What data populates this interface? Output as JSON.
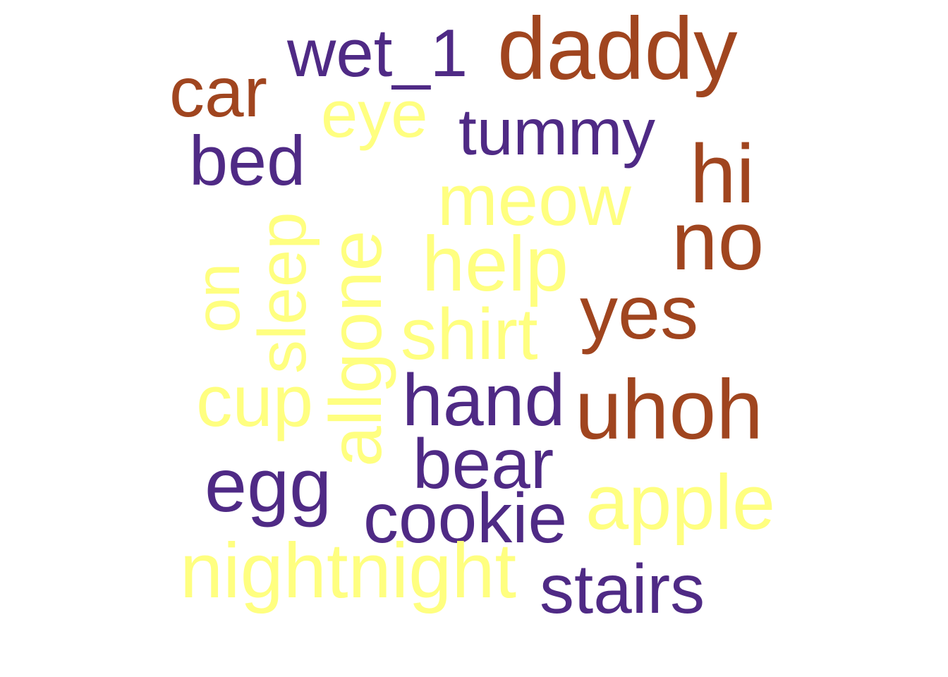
{
  "palette": {
    "purple": "#4f2a85",
    "brown": "#a0451f",
    "yellow": "#ffff80"
  },
  "words": [
    {
      "text": "wet_1",
      "color": "purple"
    },
    {
      "text": "daddy",
      "color": "brown"
    },
    {
      "text": "car",
      "color": "brown"
    },
    {
      "text": "eye",
      "color": "yellow"
    },
    {
      "text": "tummy",
      "color": "purple"
    },
    {
      "text": "bed",
      "color": "purple"
    },
    {
      "text": "hi",
      "color": "brown"
    },
    {
      "text": "meow",
      "color": "yellow"
    },
    {
      "text": "no",
      "color": "brown"
    },
    {
      "text": "on",
      "color": "yellow"
    },
    {
      "text": "sleep",
      "color": "yellow"
    },
    {
      "text": "allgone",
      "color": "yellow"
    },
    {
      "text": "help",
      "color": "yellow"
    },
    {
      "text": "yes",
      "color": "brown"
    },
    {
      "text": "shirt",
      "color": "yellow"
    },
    {
      "text": "cup",
      "color": "yellow"
    },
    {
      "text": "hand",
      "color": "purple"
    },
    {
      "text": "uhoh",
      "color": "brown"
    },
    {
      "text": "bear",
      "color": "purple"
    },
    {
      "text": "egg",
      "color": "purple"
    },
    {
      "text": "apple",
      "color": "yellow"
    },
    {
      "text": "cookie",
      "color": "purple"
    },
    {
      "text": "nightnight",
      "color": "yellow"
    },
    {
      "text": "stairs",
      "color": "purple"
    }
  ]
}
